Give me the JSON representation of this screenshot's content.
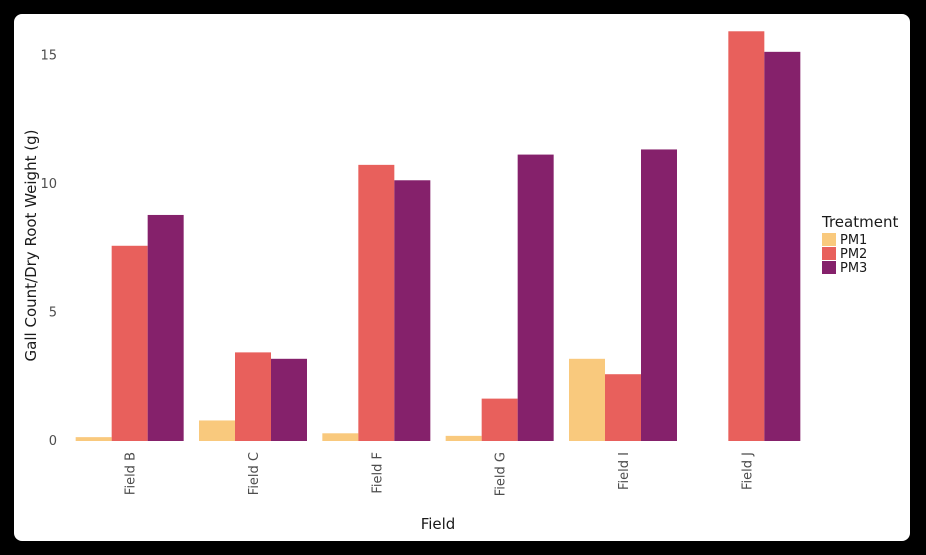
{
  "chart_data": {
    "type": "bar",
    "title": "",
    "xlabel": "Field",
    "ylabel": "Gall Count/Dry Root Weight (g)",
    "categories": [
      "Field B",
      "Field C",
      "Field F",
      "Field G",
      "Field I",
      "Field J"
    ],
    "series": [
      {
        "name": "PM1",
        "color": "#f9c97d",
        "values": [
          0.15,
          0.8,
          0.3,
          0.2,
          3.2,
          0
        ]
      },
      {
        "name": "PM2",
        "color": "#e8605c",
        "values": [
          7.6,
          3.45,
          10.75,
          1.65,
          2.6,
          15.95
        ]
      },
      {
        "name": "PM3",
        "color": "#85216b",
        "values": [
          8.8,
          3.2,
          10.15,
          11.15,
          11.35,
          15.15
        ]
      }
    ],
    "ylim": [
      0,
      16
    ],
    "yticks": [
      0,
      5,
      10,
      15
    ],
    "grid": false,
    "legend": {
      "title": "Treatment",
      "position": "right"
    }
  }
}
